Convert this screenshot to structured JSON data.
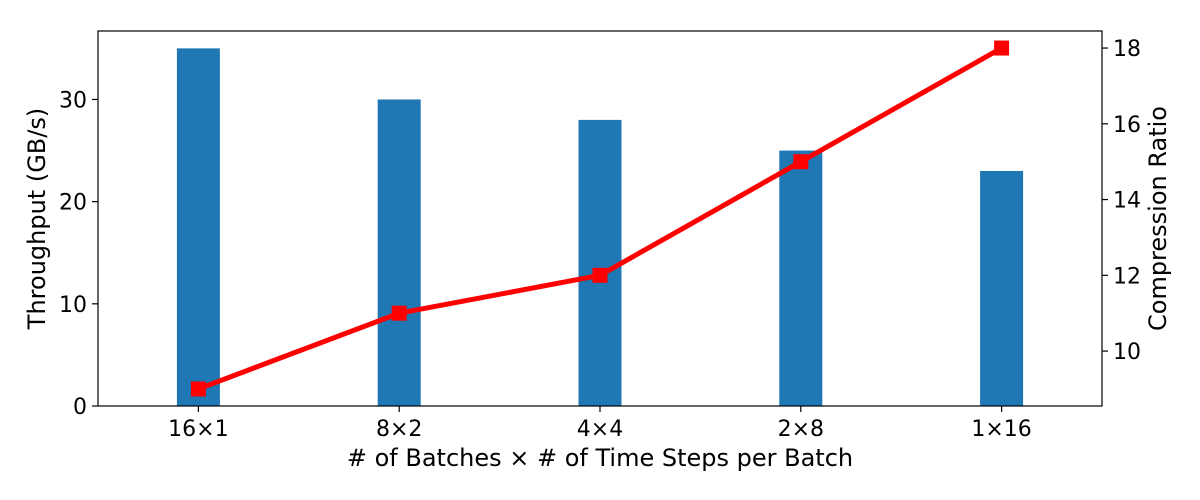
{
  "chart_data": {
    "type": "bar",
    "categories": [
      "16×1",
      "8×2",
      "4×4",
      "2×8",
      "1×16"
    ],
    "xlabel": "# of Batches × # of Time Steps per Batch",
    "series": [
      {
        "type": "bar",
        "axis": "left",
        "color": "#1f77b4",
        "values": [
          35,
          30,
          28,
          25,
          23
        ]
      },
      {
        "type": "line",
        "axis": "right",
        "color": "#ff0000",
        "marker": "square",
        "values": [
          9,
          11,
          12,
          15,
          18
        ]
      }
    ],
    "y_left": {
      "label": "Throughput (GB/s)",
      "range": [
        0,
        36.7
      ],
      "ticks": [
        0,
        10,
        20,
        30
      ]
    },
    "y_right": {
      "label": "Compression Ratio",
      "range": [
        8.55,
        18.45
      ],
      "ticks": [
        10,
        12,
        14,
        16,
        18
      ]
    },
    "grid": false,
    "legend": "none"
  }
}
